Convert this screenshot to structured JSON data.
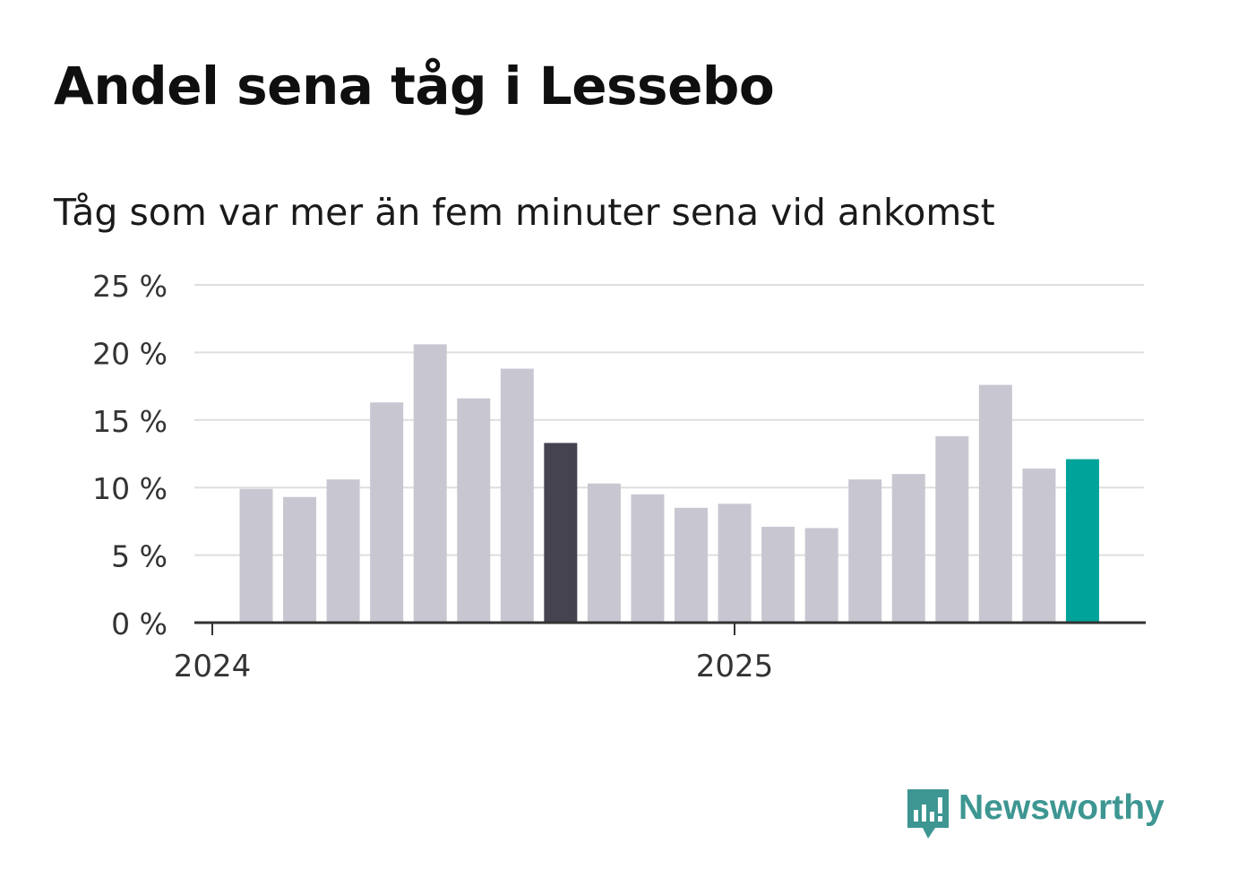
{
  "title": "Andel sena tåg i Lessebo",
  "subtitle": "Tåg som var mer än fem minuter sena vid ankomst",
  "chart_data": {
    "type": "bar",
    "title": "Andel sena tåg i Lessebo",
    "subtitle": "Tåg som var mer än fem minuter sena vid ankomst",
    "xlabel": "",
    "ylabel": "",
    "ylim": [
      0,
      25
    ],
    "yticks": [
      0,
      5,
      10,
      15,
      20,
      25
    ],
    "ytick_labels": [
      "0 %",
      "5 %",
      "10 %",
      "15 %",
      "20 %",
      "25 %"
    ],
    "xtick_labels": [
      "2024",
      "2025"
    ],
    "categories": [
      "2024-01",
      "2024-02",
      "2024-03",
      "2024-04",
      "2024-05",
      "2024-06",
      "2024-07",
      "2024-08",
      "2024-09",
      "2024-10",
      "2024-11",
      "2024-12",
      "2025-01",
      "2025-02",
      "2025-03",
      "2025-04",
      "2025-05",
      "2025-06",
      "2025-07",
      "2025-08"
    ],
    "values": [
      9.9,
      9.3,
      10.6,
      16.3,
      20.6,
      16.6,
      18.8,
      13.3,
      10.3,
      9.5,
      8.5,
      8.8,
      7.1,
      7.0,
      10.6,
      11.0,
      13.8,
      17.6,
      11.4,
      12.1
    ],
    "grid": true,
    "highlight": {
      "2024-08": "#44434f",
      "2025-08": "#00a39a"
    },
    "default_color": "#c8c7d1"
  },
  "brand": {
    "name": "Newsworthy",
    "logo": "newsworthy-logo-icon",
    "color": "#3d9692"
  }
}
